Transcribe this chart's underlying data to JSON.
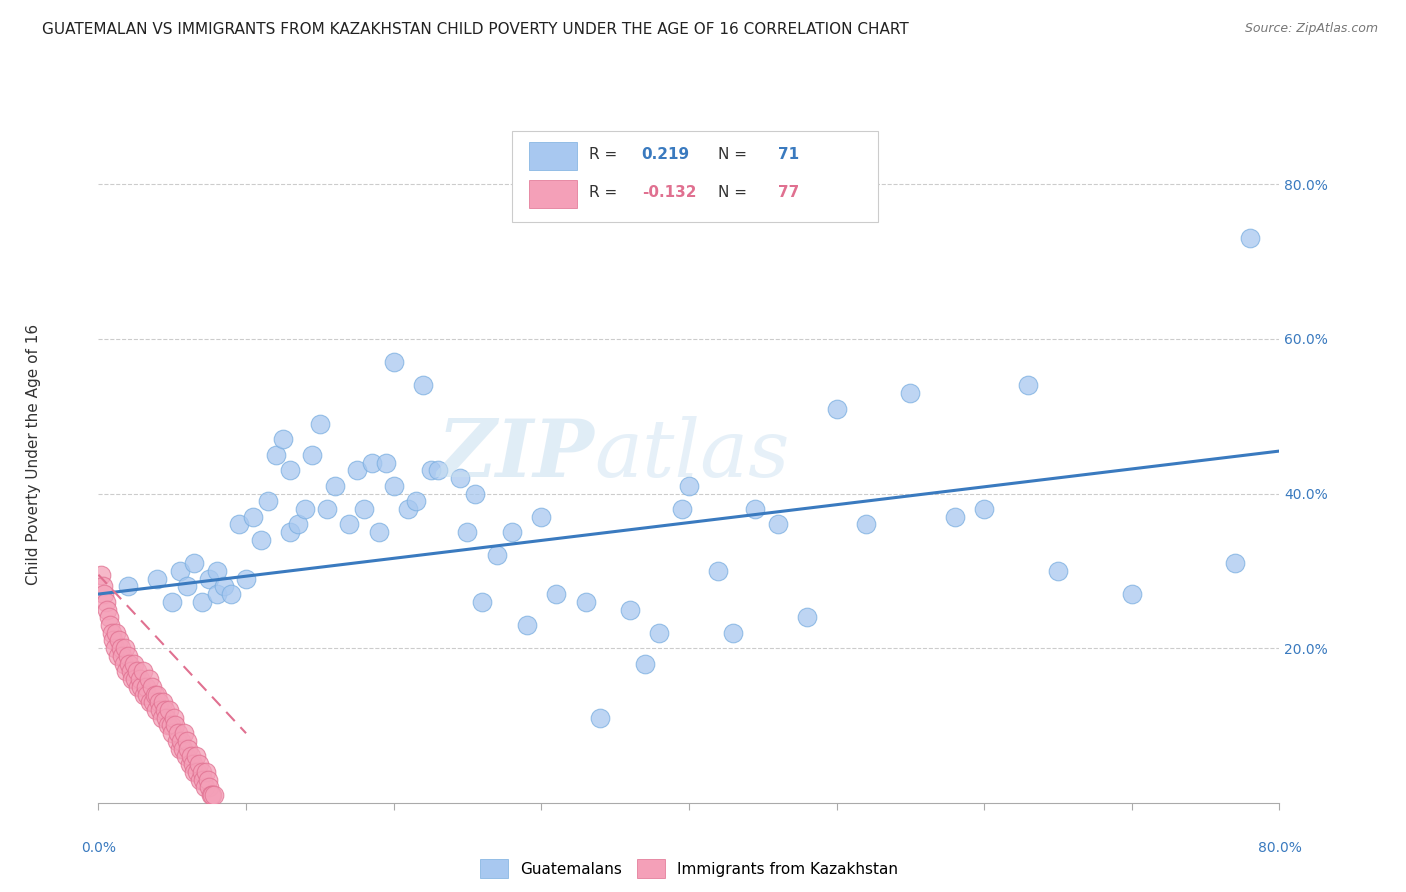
{
  "title": "GUATEMALAN VS IMMIGRANTS FROM KAZAKHSTAN CHILD POVERTY UNDER THE AGE OF 16 CORRELATION CHART",
  "source": "Source: ZipAtlas.com",
  "ylabel": "Child Poverty Under the Age of 16",
  "legend_label1": "Guatemalans",
  "legend_label2": "Immigrants from Kazakhstan",
  "r1": "0.219",
  "n1": "71",
  "r2": "-0.132",
  "n2": "77",
  "blue_color": "#a8c8f0",
  "blue_edge_color": "#7aaee0",
  "pink_color": "#f4a0b8",
  "pink_edge_color": "#e07090",
  "blue_line_color": "#3a7abf",
  "pink_line_color": "#e07090",
  "watermark_color": "#d0e8f8",
  "grid_color": "#cccccc",
  "xlim": [
    0.0,
    0.8
  ],
  "ylim": [
    0.0,
    0.9
  ],
  "yticks": [
    0.0,
    0.2,
    0.4,
    0.6,
    0.8
  ],
  "ytick_labels": [
    "",
    "20.0%",
    "40.0%",
    "60.0%",
    "80.0%"
  ],
  "xtick_vals": [
    0.0,
    0.1,
    0.2,
    0.3,
    0.4,
    0.5,
    0.6,
    0.7,
    0.8
  ],
  "blue_line_x": [
    0.0,
    0.8
  ],
  "blue_line_y": [
    0.27,
    0.455
  ],
  "pink_line_x": [
    0.0,
    0.1
  ],
  "pink_line_y": [
    0.295,
    0.09
  ],
  "blue_scatter_x": [
    0.02,
    0.04,
    0.05,
    0.055,
    0.06,
    0.065,
    0.07,
    0.075,
    0.08,
    0.08,
    0.085,
    0.09,
    0.095,
    0.1,
    0.105,
    0.11,
    0.115,
    0.12,
    0.125,
    0.13,
    0.13,
    0.135,
    0.14,
    0.145,
    0.15,
    0.155,
    0.16,
    0.17,
    0.175,
    0.18,
    0.185,
    0.19,
    0.195,
    0.2,
    0.2,
    0.21,
    0.215,
    0.22,
    0.225,
    0.23,
    0.245,
    0.25,
    0.255,
    0.26,
    0.27,
    0.28,
    0.29,
    0.3,
    0.31,
    0.33,
    0.34,
    0.36,
    0.37,
    0.38,
    0.395,
    0.4,
    0.42,
    0.43,
    0.445,
    0.46,
    0.48,
    0.5,
    0.52,
    0.55,
    0.58,
    0.6,
    0.63,
    0.65,
    0.7,
    0.77,
    0.78
  ],
  "blue_scatter_y": [
    0.28,
    0.29,
    0.26,
    0.3,
    0.28,
    0.31,
    0.26,
    0.29,
    0.27,
    0.3,
    0.28,
    0.27,
    0.36,
    0.29,
    0.37,
    0.34,
    0.39,
    0.45,
    0.47,
    0.35,
    0.43,
    0.36,
    0.38,
    0.45,
    0.49,
    0.38,
    0.41,
    0.36,
    0.43,
    0.38,
    0.44,
    0.35,
    0.44,
    0.41,
    0.57,
    0.38,
    0.39,
    0.54,
    0.43,
    0.43,
    0.42,
    0.35,
    0.4,
    0.26,
    0.32,
    0.35,
    0.23,
    0.37,
    0.27,
    0.26,
    0.11,
    0.25,
    0.18,
    0.22,
    0.38,
    0.41,
    0.3,
    0.22,
    0.38,
    0.36,
    0.24,
    0.51,
    0.36,
    0.53,
    0.37,
    0.38,
    0.54,
    0.3,
    0.27,
    0.31,
    0.73
  ],
  "pink_scatter_x": [
    0.002,
    0.003,
    0.004,
    0.005,
    0.006,
    0.007,
    0.008,
    0.009,
    0.01,
    0.011,
    0.012,
    0.013,
    0.014,
    0.015,
    0.016,
    0.017,
    0.018,
    0.019,
    0.02,
    0.021,
    0.022,
    0.023,
    0.024,
    0.025,
    0.026,
    0.027,
    0.028,
    0.029,
    0.03,
    0.031,
    0.032,
    0.033,
    0.034,
    0.035,
    0.036,
    0.037,
    0.038,
    0.039,
    0.04,
    0.041,
    0.042,
    0.043,
    0.044,
    0.045,
    0.046,
    0.047,
    0.048,
    0.049,
    0.05,
    0.051,
    0.052,
    0.053,
    0.054,
    0.055,
    0.056,
    0.057,
    0.058,
    0.059,
    0.06,
    0.061,
    0.062,
    0.063,
    0.064,
    0.065,
    0.066,
    0.067,
    0.068,
    0.069,
    0.07,
    0.071,
    0.072,
    0.073,
    0.074,
    0.075,
    0.076,
    0.077,
    0.078
  ],
  "pink_scatter_y": [
    0.295,
    0.28,
    0.27,
    0.26,
    0.25,
    0.24,
    0.23,
    0.22,
    0.21,
    0.2,
    0.22,
    0.19,
    0.21,
    0.2,
    0.19,
    0.18,
    0.2,
    0.17,
    0.19,
    0.18,
    0.17,
    0.16,
    0.18,
    0.16,
    0.17,
    0.15,
    0.16,
    0.15,
    0.17,
    0.14,
    0.15,
    0.14,
    0.16,
    0.13,
    0.15,
    0.13,
    0.14,
    0.12,
    0.14,
    0.13,
    0.12,
    0.11,
    0.13,
    0.12,
    0.11,
    0.1,
    0.12,
    0.1,
    0.09,
    0.11,
    0.1,
    0.08,
    0.09,
    0.07,
    0.08,
    0.07,
    0.09,
    0.06,
    0.08,
    0.07,
    0.05,
    0.06,
    0.05,
    0.04,
    0.06,
    0.04,
    0.05,
    0.03,
    0.04,
    0.03,
    0.02,
    0.04,
    0.03,
    0.02,
    0.01,
    0.01,
    0.01
  ]
}
